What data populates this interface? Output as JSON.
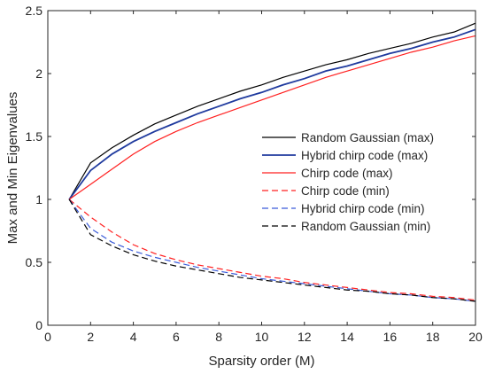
{
  "chart_data": {
    "type": "line",
    "title": "",
    "xlabel": "Sparsity order (M)",
    "ylabel": "Max and Min Eigenvalues",
    "xlim": [
      0,
      20
    ],
    "ylim": [
      0,
      2.5
    ],
    "xticks": [
      0,
      2,
      4,
      6,
      8,
      10,
      12,
      14,
      16,
      18,
      20
    ],
    "yticks": [
      0,
      0.5,
      1,
      1.5,
      2,
      2.5
    ],
    "xtick_labels": [
      "0",
      "2",
      "4",
      "6",
      "8",
      "10",
      "12",
      "14",
      "16",
      "18",
      "20"
    ],
    "ytick_labels": [
      "0",
      "0.5",
      "1",
      "1.5",
      "2",
      "2.5"
    ],
    "grid": false,
    "legend_position": "right-center",
    "x": [
      1,
      2,
      3,
      4,
      5,
      6,
      7,
      8,
      9,
      10,
      11,
      12,
      13,
      14,
      15,
      16,
      17,
      18,
      19,
      20
    ],
    "series": [
      {
        "name": "Random Gaussian (max)",
        "color": "#000000",
        "style": "solid",
        "values": [
          1.0,
          1.29,
          1.41,
          1.51,
          1.6,
          1.67,
          1.74,
          1.8,
          1.86,
          1.91,
          1.97,
          2.02,
          2.07,
          2.11,
          2.16,
          2.2,
          2.24,
          2.29,
          2.33,
          2.4
        ]
      },
      {
        "name": "Hybrid chirp code (max)",
        "color": "#1f3a9e",
        "style": "solid",
        "values": [
          1.0,
          1.23,
          1.36,
          1.46,
          1.54,
          1.61,
          1.68,
          1.74,
          1.8,
          1.85,
          1.91,
          1.96,
          2.02,
          2.06,
          2.11,
          2.16,
          2.2,
          2.25,
          2.29,
          2.35
        ]
      },
      {
        "name": "Chirp code (max)",
        "color": "#ff2020",
        "style": "solid",
        "values": [
          1.0,
          1.12,
          1.24,
          1.36,
          1.46,
          1.54,
          1.61,
          1.67,
          1.73,
          1.79,
          1.85,
          1.91,
          1.97,
          2.02,
          2.07,
          2.12,
          2.17,
          2.21,
          2.26,
          2.3
        ]
      },
      {
        "name": "Chirp code (min)",
        "color": "#ff2020",
        "style": "dashed",
        "values": [
          1.0,
          0.86,
          0.74,
          0.64,
          0.57,
          0.52,
          0.48,
          0.45,
          0.42,
          0.39,
          0.37,
          0.34,
          0.32,
          0.3,
          0.28,
          0.26,
          0.25,
          0.23,
          0.22,
          0.2
        ]
      },
      {
        "name": "Hybrid chirp code (min)",
        "color": "#3a5bd9",
        "style": "dashed",
        "values": [
          1.0,
          0.77,
          0.66,
          0.59,
          0.54,
          0.5,
          0.46,
          0.43,
          0.4,
          0.37,
          0.35,
          0.33,
          0.31,
          0.29,
          0.27,
          0.25,
          0.24,
          0.22,
          0.21,
          0.19
        ]
      },
      {
        "name": "Random Gaussian (min)",
        "color": "#000000",
        "style": "dashed",
        "values": [
          1.0,
          0.72,
          0.63,
          0.56,
          0.51,
          0.47,
          0.44,
          0.41,
          0.38,
          0.36,
          0.34,
          0.32,
          0.3,
          0.28,
          0.27,
          0.25,
          0.24,
          0.22,
          0.21,
          0.19
        ]
      }
    ]
  }
}
